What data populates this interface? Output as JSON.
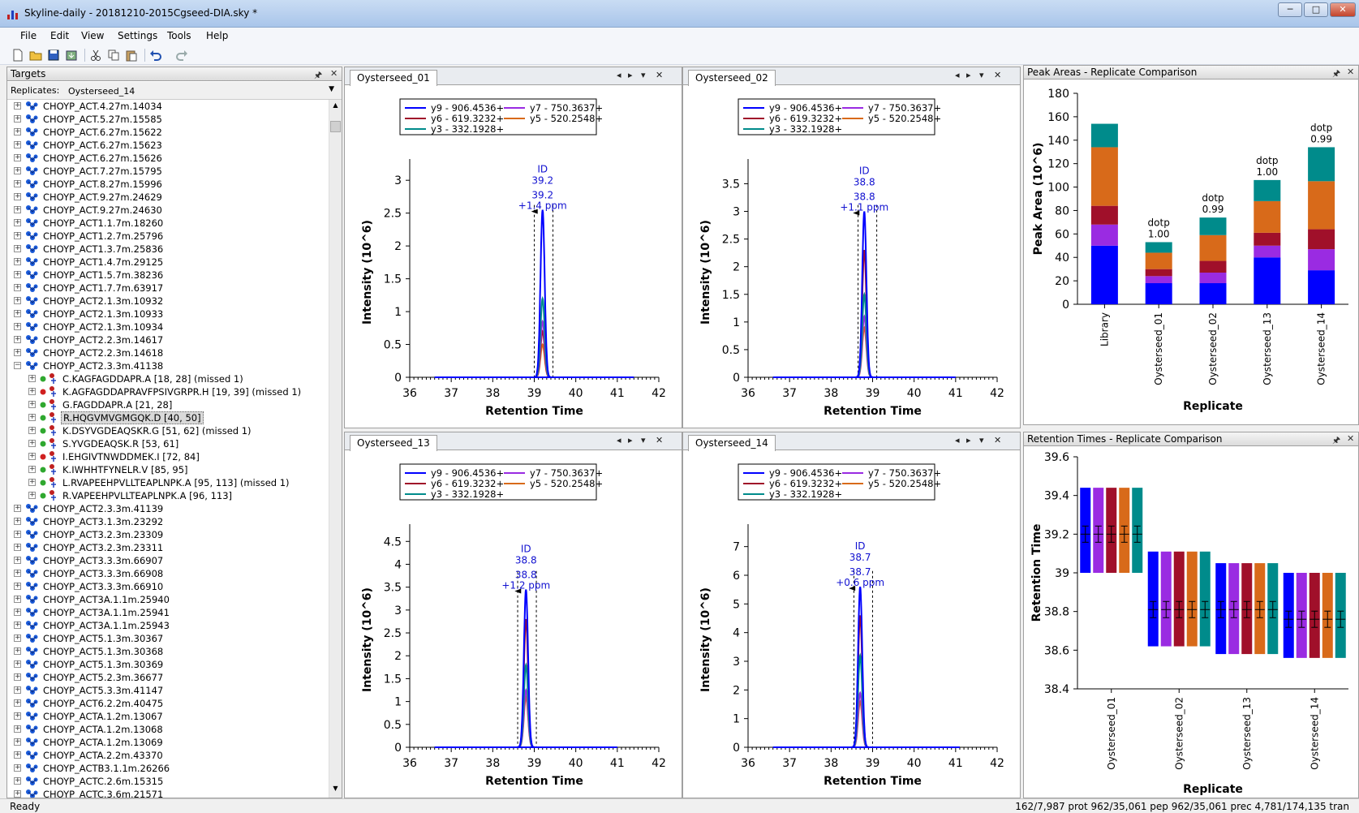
{
  "window": {
    "title": "Skyline-daily - 20181210-2015Cgseed-DIA.sky *",
    "minimize": "─",
    "maximize": "□",
    "close": "✕"
  },
  "menu": {
    "items": [
      "File",
      "Edit",
      "View",
      "Settings",
      "Tools",
      "Help"
    ]
  },
  "toolbar": {
    "icons": [
      "new-icon",
      "open-icon",
      "save-icon",
      "import-icon",
      "cut-icon",
      "copy-icon",
      "paste-icon",
      "undo-icon",
      "redo-icon"
    ]
  },
  "targets": {
    "title": "Targets",
    "replicates_label": "Replicates:",
    "replicate_selected": "Oysterseed_14",
    "rows": [
      {
        "level": 0,
        "label": "CHOYP_ACT.4.27m.14034",
        "expanded": false
      },
      {
        "level": 0,
        "label": "CHOYP_ACT.5.27m.15585",
        "expanded": false
      },
      {
        "level": 0,
        "label": "CHOYP_ACT.6.27m.15622",
        "expanded": false
      },
      {
        "level": 0,
        "label": "CHOYP_ACT.6.27m.15623",
        "expanded": false
      },
      {
        "level": 0,
        "label": "CHOYP_ACT.6.27m.15626",
        "expanded": false
      },
      {
        "level": 0,
        "label": "CHOYP_ACT.7.27m.15795",
        "expanded": false
      },
      {
        "level": 0,
        "label": "CHOYP_ACT.8.27m.15996",
        "expanded": false
      },
      {
        "level": 0,
        "label": "CHOYP_ACT.9.27m.24629",
        "expanded": false
      },
      {
        "level": 0,
        "label": "CHOYP_ACT.9.27m.24630",
        "expanded": false
      },
      {
        "level": 0,
        "label": "CHOYP_ACT1.1.7m.18260",
        "expanded": false
      },
      {
        "level": 0,
        "label": "CHOYP_ACT1.2.7m.25796",
        "expanded": false
      },
      {
        "level": 0,
        "label": "CHOYP_ACT1.3.7m.25836",
        "expanded": false
      },
      {
        "level": 0,
        "label": "CHOYP_ACT1.4.7m.29125",
        "expanded": false
      },
      {
        "level": 0,
        "label": "CHOYP_ACT1.5.7m.38236",
        "expanded": false
      },
      {
        "level": 0,
        "label": "CHOYP_ACT1.7.7m.63917",
        "expanded": false
      },
      {
        "level": 0,
        "label": "CHOYP_ACT2.1.3m.10932",
        "expanded": false
      },
      {
        "level": 0,
        "label": "CHOYP_ACT2.1.3m.10933",
        "expanded": false
      },
      {
        "level": 0,
        "label": "CHOYP_ACT2.1.3m.10934",
        "expanded": false
      },
      {
        "level": 0,
        "label": "CHOYP_ACT2.2.3m.14617",
        "expanded": false
      },
      {
        "level": 0,
        "label": "CHOYP_ACT2.2.3m.14618",
        "expanded": false
      },
      {
        "level": 0,
        "label": "CHOYP_ACT2.3.3m.41138",
        "expanded": true
      },
      {
        "level": 1,
        "label": "C.KAGFAGDDAPR.A [18, 28] (missed 1)",
        "dot": "#2fa82f"
      },
      {
        "level": 1,
        "label": "K.AGFAGDDAPRAVFPSIVGRPR.H [19, 39] (missed 1)",
        "dot": "#d02020"
      },
      {
        "level": 1,
        "label": "G.FAGDDAPR.A [21, 28]",
        "dot": "#2fa82f"
      },
      {
        "level": 1,
        "label": "R.HQGVMVGMGQK.D [40, 50]",
        "dot": "#2fa82f",
        "selected": true
      },
      {
        "level": 1,
        "label": "K.DSYVGDEAQSKR.G [51, 62] (missed 1)",
        "dot": "#2fa82f"
      },
      {
        "level": 1,
        "label": "S.YVGDEAQSK.R [53, 61]",
        "dot": "#2fa82f"
      },
      {
        "level": 1,
        "label": "I.EHGIVTNWDDMEK.I [72, 84]",
        "dot": "#d02020"
      },
      {
        "level": 1,
        "label": "K.IWHHTFYNELR.V [85, 95]",
        "dot": "#2fa82f"
      },
      {
        "level": 1,
        "label": "L.RVAPEEHPVLLTEAPLNPK.A [95, 113] (missed 1)",
        "dot": "#2fa82f"
      },
      {
        "level": 1,
        "label": "R.VAPEEHPVLLTEAPLNPK.A [96, 113]",
        "dot": "#2fa82f"
      },
      {
        "level": 0,
        "label": "CHOYP_ACT2.3.3m.41139",
        "expanded": false
      },
      {
        "level": 0,
        "label": "CHOYP_ACT3.1.3m.23292",
        "expanded": false
      },
      {
        "level": 0,
        "label": "CHOYP_ACT3.2.3m.23309",
        "expanded": false
      },
      {
        "level": 0,
        "label": "CHOYP_ACT3.2.3m.23311",
        "expanded": false
      },
      {
        "level": 0,
        "label": "CHOYP_ACT3.3.3m.66907",
        "expanded": false
      },
      {
        "level": 0,
        "label": "CHOYP_ACT3.3.3m.66908",
        "expanded": false
      },
      {
        "level": 0,
        "label": "CHOYP_ACT3.3.3m.66910",
        "expanded": false
      },
      {
        "level": 0,
        "label": "CHOYP_ACT3A.1.1m.25940",
        "expanded": false
      },
      {
        "level": 0,
        "label": "CHOYP_ACT3A.1.1m.25941",
        "expanded": false
      },
      {
        "level": 0,
        "label": "CHOYP_ACT3A.1.1m.25943",
        "expanded": false
      },
      {
        "level": 0,
        "label": "CHOYP_ACT5.1.3m.30367",
        "expanded": false
      },
      {
        "level": 0,
        "label": "CHOYP_ACT5.1.3m.30368",
        "expanded": false
      },
      {
        "level": 0,
        "label": "CHOYP_ACT5.1.3m.30369",
        "expanded": false
      },
      {
        "level": 0,
        "label": "CHOYP_ACT5.2.3m.36677",
        "expanded": false
      },
      {
        "level": 0,
        "label": "CHOYP_ACT5.3.3m.41147",
        "expanded": false
      },
      {
        "level": 0,
        "label": "CHOYP_ACT6.2.2m.40475",
        "expanded": false
      },
      {
        "level": 0,
        "label": "CHOYP_ACTA.1.2m.13067",
        "expanded": false
      },
      {
        "level": 0,
        "label": "CHOYP_ACTA.1.2m.13068",
        "expanded": false
      },
      {
        "level": 0,
        "label": "CHOYP_ACTA.1.2m.13069",
        "expanded": false
      },
      {
        "level": 0,
        "label": "CHOYP_ACTA.2.2m.43370",
        "expanded": false
      },
      {
        "level": 0,
        "label": "CHOYP_ACTB3.1.1m.26266",
        "expanded": false
      },
      {
        "level": 0,
        "label": "CHOYP_ACTC.2.6m.15315",
        "expanded": false
      },
      {
        "level": 0,
        "label": "CHOYP_ACTC.3.6m.21571",
        "expanded": false
      }
    ]
  },
  "transitions": [
    {
      "name": "y9 - 906.4536+",
      "color": "#0000ff"
    },
    {
      "name": "y7 - 750.3637+",
      "color": "#9a2be2"
    },
    {
      "name": "y6 - 619.3232+",
      "color": "#a0102a"
    },
    {
      "name": "y5 - 520.2548+",
      "color": "#d86a1a"
    },
    {
      "name": "y3 - 332.1928+",
      "color": "#008b8b"
    }
  ],
  "chromatograms": [
    {
      "tab": "Oysterseed_01",
      "ylabel": "Intensity (10^6)",
      "xlabel": "Retention Time",
      "xlim": [
        36,
        42
      ],
      "ylim": [
        0,
        3.2
      ],
      "yticks": [
        0,
        0.5,
        1,
        1.5,
        2,
        2.5,
        3
      ],
      "xticks": [
        36,
        37,
        38,
        39,
        40,
        41,
        42
      ],
      "x_start": 36.6,
      "x_end": 41.4,
      "apex": 39.2,
      "width": 0.05,
      "bounds": [
        39.0,
        39.45
      ],
      "heights": [
        2.55,
        0.85,
        0.7,
        0.5,
        1.2
      ],
      "annotation": [
        "ID",
        "39.2",
        "39.2",
        "+1.4 ppm"
      ]
    },
    {
      "tab": "Oysterseed_02",
      "ylabel": "Intensity (10^6)",
      "xlabel": "Retention Time",
      "xlim": [
        36,
        42
      ],
      "ylim": [
        0,
        3.8
      ],
      "yticks": [
        0,
        0.5,
        1,
        1.5,
        2,
        2.5,
        3,
        3.5
      ],
      "xticks": [
        36,
        37,
        38,
        39,
        40,
        41,
        42
      ],
      "x_start": 36.6,
      "x_end": 41.0,
      "apex": 38.8,
      "width": 0.05,
      "bounds": [
        38.65,
        39.1
      ],
      "heights": [
        3.0,
        1.1,
        2.3,
        0.9,
        1.5
      ],
      "annotation": [
        "ID",
        "38.8",
        "38.8",
        "+1.1 ppm"
      ]
    },
    {
      "tab": "Oysterseed_13",
      "ylabel": "Intensity (10^6)",
      "xlabel": "Retention Time",
      "xlim": [
        36,
        42
      ],
      "ylim": [
        0,
        4.7
      ],
      "yticks": [
        0,
        0.5,
        1,
        1.5,
        2,
        2.5,
        3,
        3.5,
        4,
        4.5
      ],
      "xticks": [
        36,
        37,
        38,
        39,
        40,
        41,
        42
      ],
      "x_start": 36.6,
      "x_end": 41.0,
      "apex": 38.8,
      "width": 0.05,
      "bounds": [
        38.6,
        39.05
      ],
      "heights": [
        3.45,
        1.25,
        2.8,
        1.1,
        1.8
      ],
      "annotation": [
        "ID",
        "38.8",
        "38.8",
        "+1.2 ppm"
      ]
    },
    {
      "tab": "Oysterseed_14",
      "ylabel": "Intensity (10^6)",
      "xlabel": "Retention Time",
      "xlim": [
        36,
        42
      ],
      "ylim": [
        0,
        7.5
      ],
      "yticks": [
        0,
        1,
        2,
        3,
        4,
        5,
        6,
        7
      ],
      "xticks": [
        36,
        37,
        38,
        39,
        40,
        41,
        42
      ],
      "x_start": 36.6,
      "x_end": 41.1,
      "apex": 38.7,
      "width": 0.05,
      "bounds": [
        38.55,
        39.0
      ],
      "heights": [
        5.6,
        1.9,
        4.6,
        1.6,
        3.2
      ],
      "annotation": [
        "ID",
        "38.7",
        "38.7",
        "+0.6 ppm"
      ]
    }
  ],
  "peak_areas": {
    "title": "Peak Areas - Replicate Comparison",
    "ylabel": "Peak Area (10^6)",
    "xlabel": "Replicate",
    "ylim": [
      0,
      180
    ],
    "yticks": [
      0,
      20,
      40,
      60,
      80,
      100,
      120,
      140,
      160,
      180
    ],
    "categories": [
      "Library",
      "Oysterseed_01",
      "Oysterseed_02",
      "Oysterseed_13",
      "Oysterseed_14"
    ],
    "series_order": [
      "y9",
      "y7",
      "y6",
      "y5",
      "y3"
    ],
    "stacks": [
      [
        50,
        18,
        18,
        40,
        29
      ],
      [
        18,
        6,
        9,
        10,
        18
      ],
      [
        16,
        6,
        10,
        11,
        17
      ],
      [
        50,
        14,
        22,
        27,
        41
      ],
      [
        20,
        9,
        15,
        18,
        29
      ]
    ],
    "dotp_label": "dotp",
    "dotp": [
      "",
      "1.00",
      "0.99",
      "1.00",
      "0.99"
    ]
  },
  "retention_times": {
    "title": "Retention Times - Replicate Comparison",
    "ylabel": "Retention Time",
    "xlabel": "Replicate",
    "ylim": [
      38.4,
      39.6
    ],
    "yticks": [
      "38.4",
      "38.6",
      "38.8",
      "39",
      "39.2",
      "39.4",
      "39.6"
    ],
    "categories": [
      "Oysterseed_01",
      "Oysterseed_02",
      "Oysterseed_13",
      "Oysterseed_14"
    ],
    "boxes": [
      {
        "low": 39.0,
        "high": 39.44,
        "mid": 39.2
      },
      {
        "low": 38.62,
        "high": 39.11,
        "mid": 38.81
      },
      {
        "low": 38.58,
        "high": 39.05,
        "mid": 38.81
      },
      {
        "low": 38.56,
        "high": 39.0,
        "mid": 38.76
      }
    ]
  },
  "status": {
    "left": "Ready",
    "right": "162/7,987 prot   962/35,061 pep   962/35,061 prec   4,781/174,135 tran"
  }
}
